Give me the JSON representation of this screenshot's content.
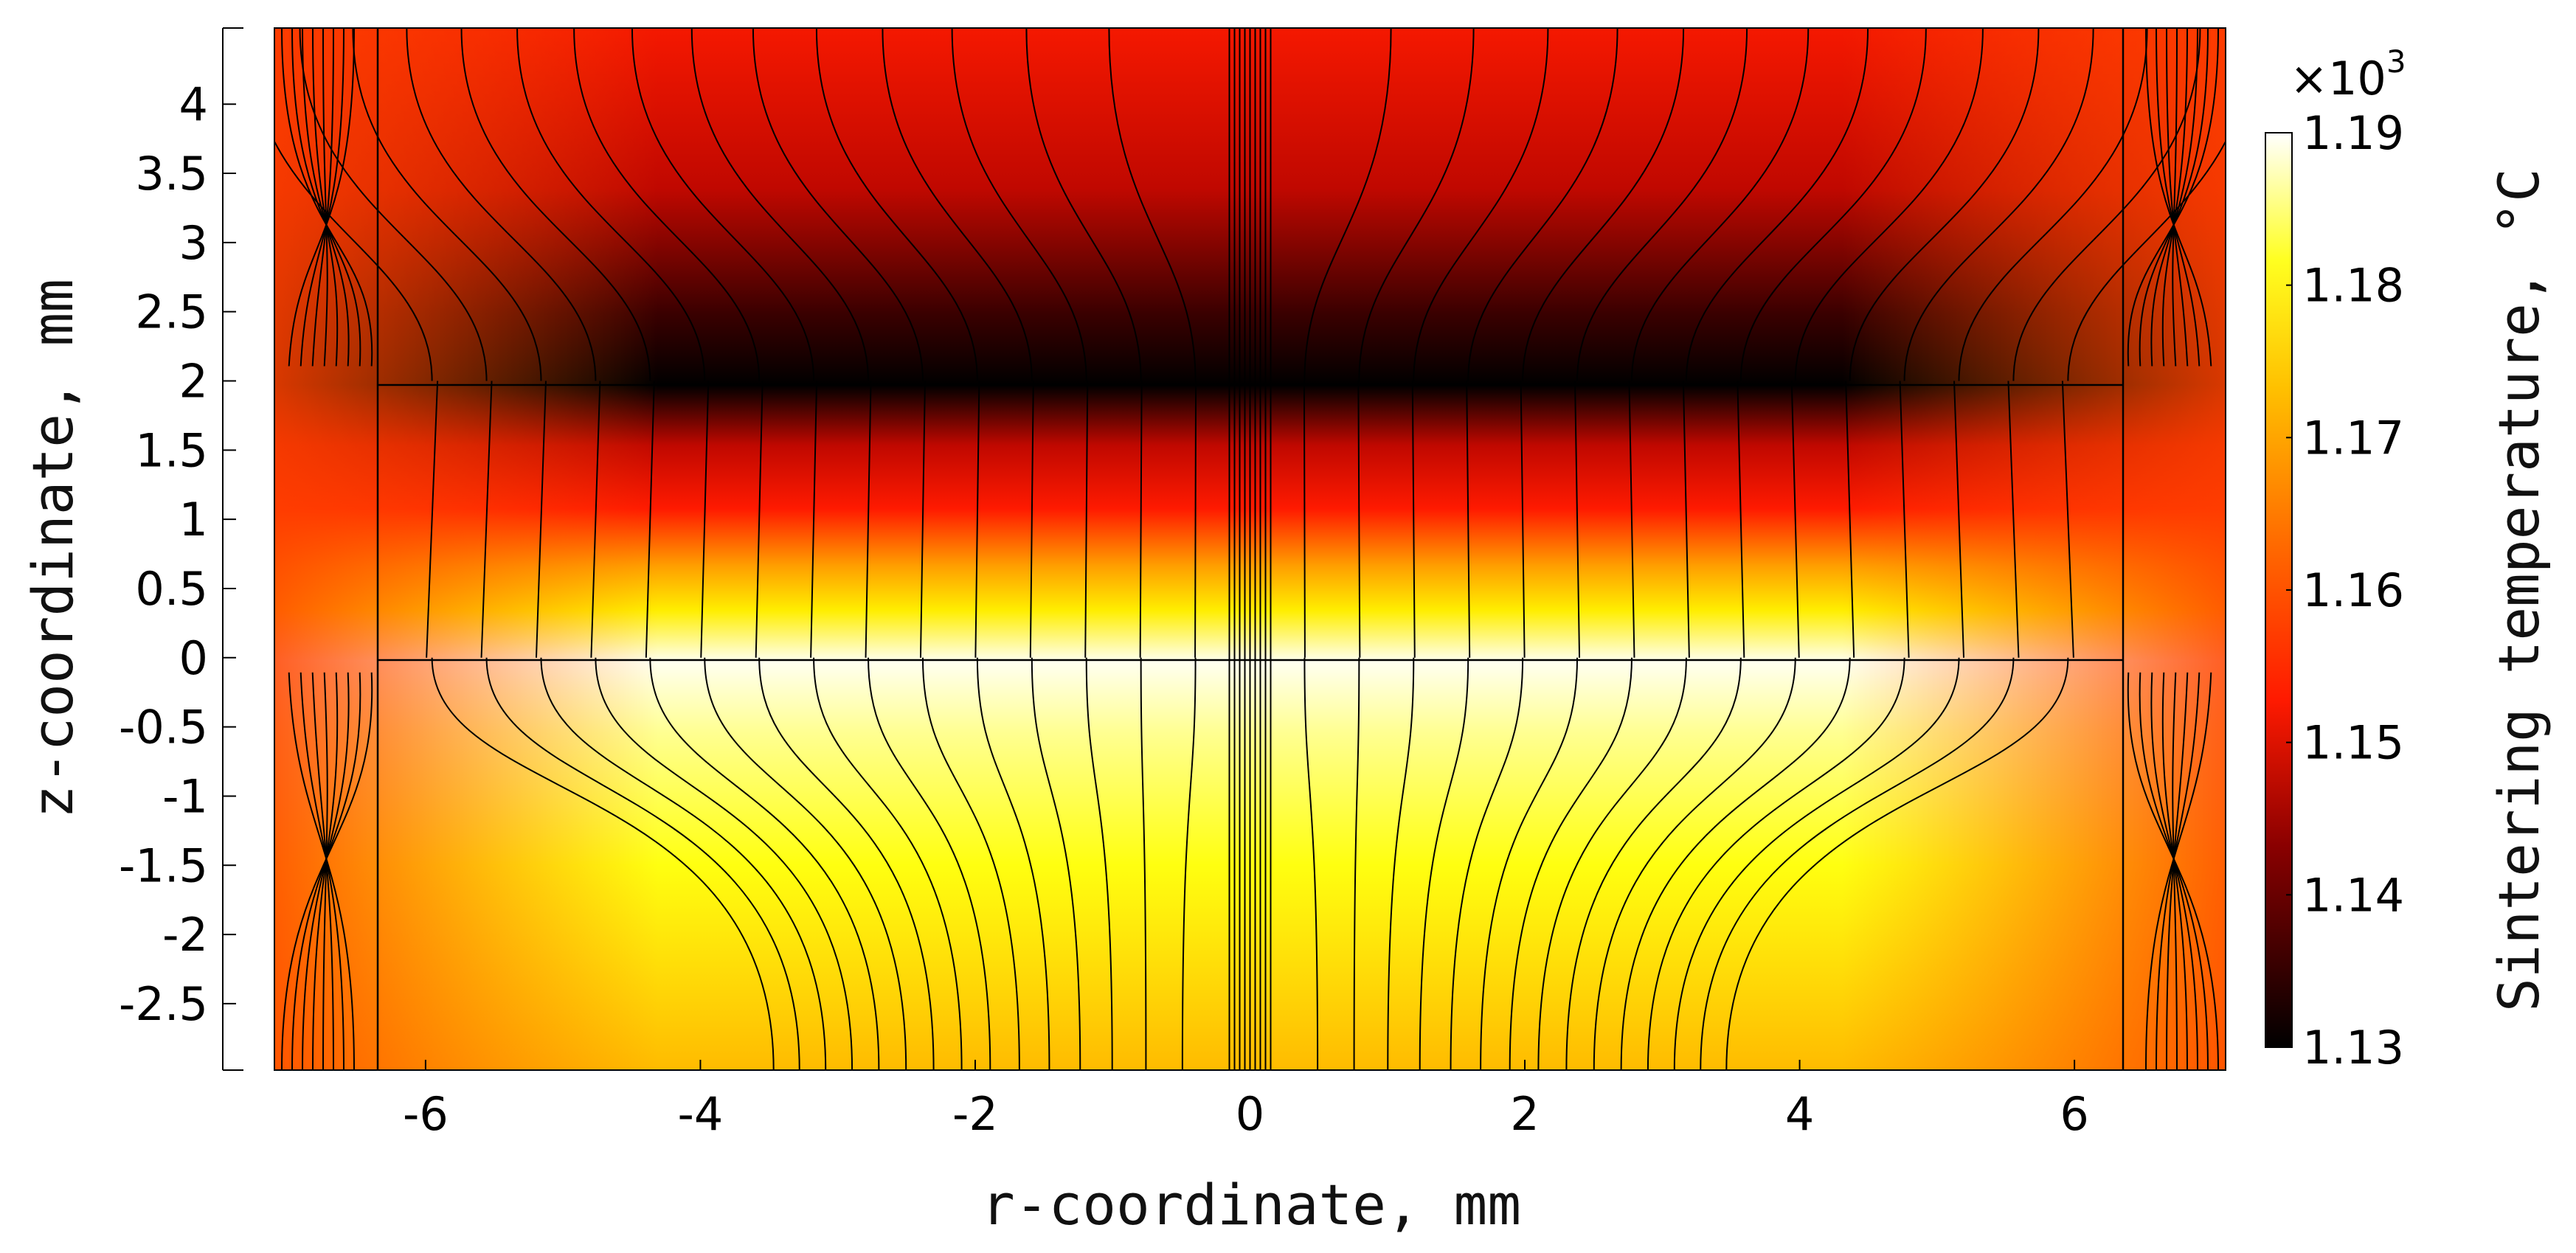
{
  "chart_data": {
    "type": "heatmap",
    "title": "",
    "xlabel": "r-coordinate, mm",
    "ylabel": "z-coordinate, mm",
    "xlim": [
      -7.1,
      7.1
    ],
    "ylim": [
      -2.98,
      4.55
    ],
    "x_ticks": [
      "-6",
      "-4",
      "-2",
      "0",
      "2",
      "4",
      "6"
    ],
    "y_ticks": [
      "4",
      "3.5",
      "3",
      "2.5",
      "2",
      "1.5",
      "1",
      "0.5",
      "0",
      "-0.5",
      "-1",
      "-1.5",
      "-2",
      "-2.5"
    ],
    "colorbar": {
      "label": "Sintering temperature, °C",
      "multiplier_base": "×10",
      "multiplier_exp": "3",
      "range": [
        1.13,
        1.19
      ],
      "ticks": [
        "1.19",
        "1.18",
        "1.17",
        "1.16",
        "1.15",
        "1.14",
        "1.13"
      ],
      "colormap": "heat (black-red-orange-yellow-white)"
    },
    "regions": {
      "sample": {
        "r": [
          -6.35,
          6.35
        ],
        "z": [
          0,
          2
        ]
      },
      "die_wall_r": [
        -6.35,
        6.35
      ]
    },
    "temperature_profile": [
      {
        "z": 4.55,
        "value": 1.15
      },
      {
        "z": 3.5,
        "value": 1.146
      },
      {
        "z": 2.6,
        "value": 1.138
      },
      {
        "z": 2.0,
        "value": 1.13
      },
      {
        "z": 1.5,
        "value": 1.15
      },
      {
        "z": 1.0,
        "value": 1.16
      },
      {
        "z": 0.5,
        "value": 1.175
      },
      {
        "z": 0.0,
        "value": 1.189
      },
      {
        "z": -1.0,
        "value": 1.18
      },
      {
        "z": -2.0,
        "value": 1.172
      },
      {
        "z": -2.98,
        "value": 1.165
      }
    ],
    "overlay": "current streamlines (black contour lines)",
    "grid": false,
    "legend": "colorbar-right"
  }
}
